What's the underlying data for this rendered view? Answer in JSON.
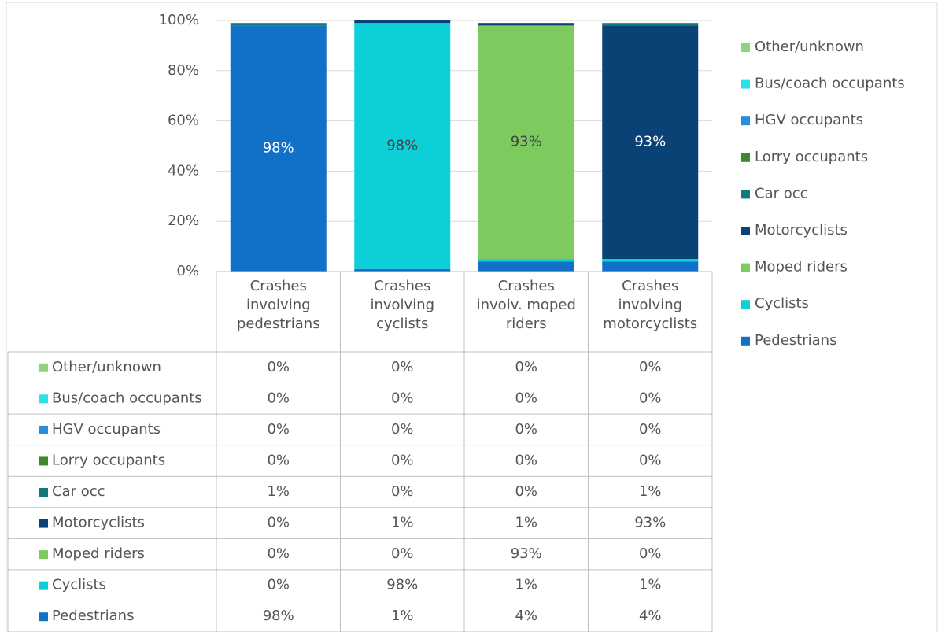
{
  "chart_data": {
    "type": "stacked_bar",
    "categories": [
      "Crashes involving pedestrians",
      "Crashes involving cyclists",
      "Crashes involv. moped riders",
      "Crashes involving motorcyclists"
    ],
    "series": [
      {
        "name": "Pedestrians",
        "color": "#1170c8",
        "values": [
          98,
          1,
          4,
          4
        ],
        "value_labels": [
          "98%",
          "1%",
          "4%",
          "4%"
        ]
      },
      {
        "name": "Cyclists",
        "color": "#0ccfd8",
        "values": [
          0,
          98,
          1,
          1
        ],
        "value_labels": [
          "0%",
          "98%",
          "1%",
          "1%"
        ]
      },
      {
        "name": "Moped riders",
        "color": "#7dca5e",
        "values": [
          0,
          0,
          93,
          0
        ],
        "value_labels": [
          "0%",
          "0%",
          "93%",
          "0%"
        ]
      },
      {
        "name": "Motorcyclists",
        "color": "#0b4275",
        "values": [
          0,
          1,
          1,
          93
        ],
        "value_labels": [
          "0%",
          "1%",
          "1%",
          "93%"
        ]
      },
      {
        "name": "Car occ",
        "color": "#0f7b7b",
        "values": [
          1,
          0,
          0,
          1
        ],
        "value_labels": [
          "1%",
          "0%",
          "0%",
          "1%"
        ]
      },
      {
        "name": "Lorry occupants",
        "color": "#3a8a2a",
        "values": [
          0,
          0,
          0,
          0
        ],
        "value_labels": [
          "0%",
          "0%",
          "0%",
          "0%"
        ]
      },
      {
        "name": "HGV occupants",
        "color": "#2a8ce0",
        "values": [
          0,
          0,
          0,
          0
        ],
        "value_labels": [
          "0%",
          "0%",
          "0%",
          "0%"
        ]
      },
      {
        "name": "Bus/coach occupants",
        "color": "#2de0e8",
        "values": [
          0,
          0,
          0,
          0
        ],
        "value_labels": [
          "0%",
          "0%",
          "0%",
          "0%"
        ]
      },
      {
        "name": "Other/unknown",
        "color": "#8fd47a",
        "values": [
          0,
          0,
          0,
          0
        ],
        "value_labels": [
          "0%",
          "0%",
          "0%",
          "0%"
        ]
      }
    ],
    "ylim": [
      0,
      100
    ],
    "yticks": [
      {
        "value": 0,
        "label": "0%"
      },
      {
        "value": 20,
        "label": "20%"
      },
      {
        "value": 40,
        "label": "40%"
      },
      {
        "value": 60,
        "label": "60%"
      },
      {
        "value": 80,
        "label": "80%"
      },
      {
        "value": 100,
        "label": "100%"
      }
    ],
    "grid": true,
    "legend": "right",
    "data_table": true
  }
}
